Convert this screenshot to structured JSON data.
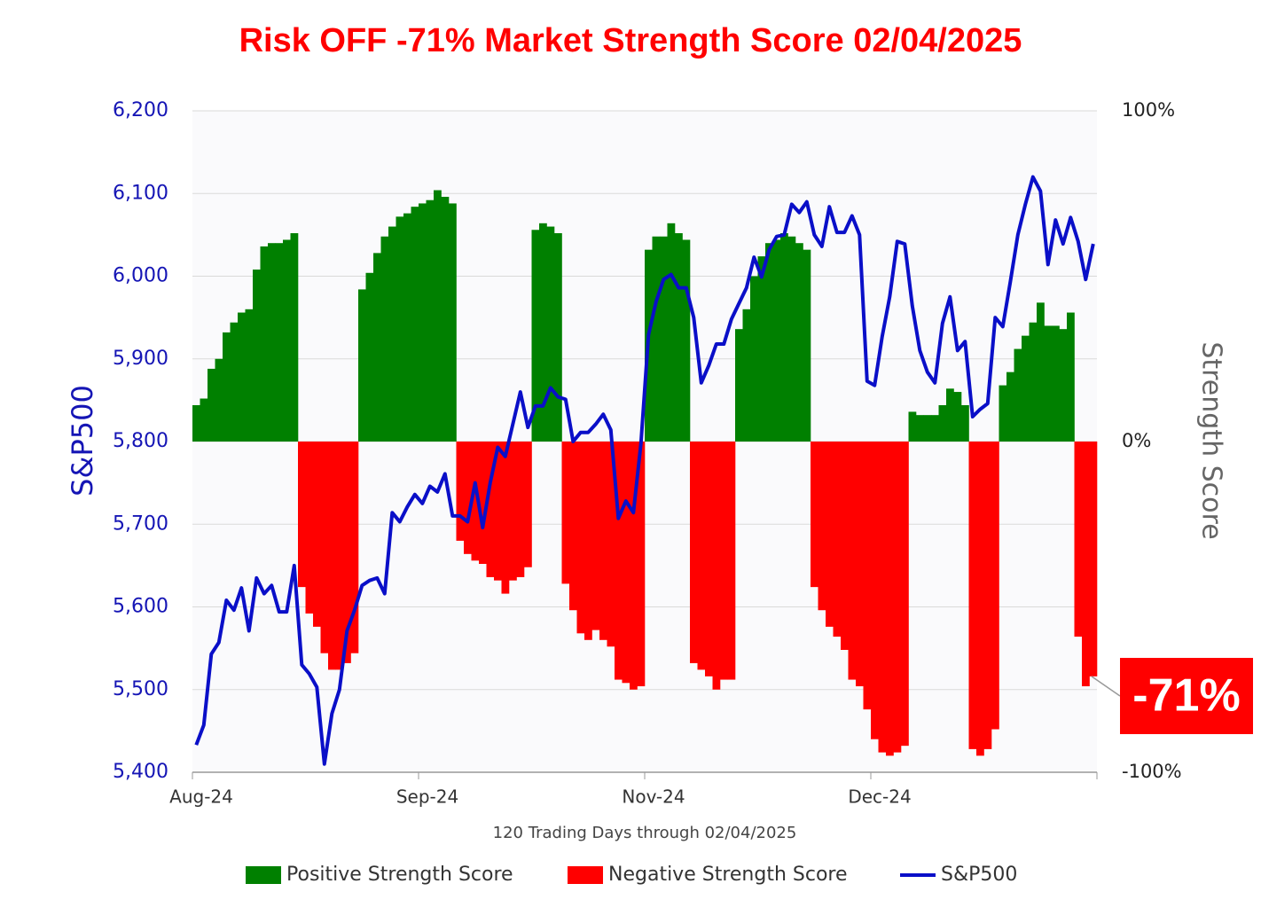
{
  "chart_data": {
    "type": "bar",
    "title": "Risk OFF -71% Market Strength Score 02/04/2025",
    "y_label": "S&P500",
    "y2_label": "Strength Score",
    "x_label": "120 Trading Days through 02/04/2025",
    "annotation": "-71%",
    "categories": [
      "Aug-24",
      null,
      null,
      null,
      null,
      null,
      null,
      null,
      null,
      null,
      null,
      null,
      null,
      null,
      null,
      null,
      null,
      null,
      null,
      null,
      null,
      null,
      null,
      null,
      null,
      null,
      null,
      null,
      null,
      null,
      "Sep-24",
      null,
      null,
      null,
      null,
      null,
      null,
      null,
      null,
      null,
      null,
      null,
      null,
      null,
      null,
      null,
      null,
      null,
      null,
      null,
      null,
      null,
      null,
      null,
      null,
      null,
      null,
      null,
      null,
      null,
      "Nov-24",
      null,
      null,
      null,
      null,
      null,
      null,
      null,
      null,
      null,
      null,
      null,
      null,
      null,
      null,
      null,
      null,
      null,
      null,
      null,
      null,
      null,
      null,
      null,
      null,
      null,
      null,
      null,
      null,
      null,
      "Dec-24",
      null,
      null,
      null,
      null,
      null,
      null,
      null,
      null,
      null,
      null,
      null,
      null,
      null,
      null,
      null,
      null,
      null,
      null,
      null,
      null,
      null,
      null,
      null,
      null,
      null,
      null,
      null,
      null,
      null
    ],
    "series": [
      {
        "name": "Positive Strength Score",
        "color": "#008000",
        "axis": "y2",
        "values": [
          11,
          13,
          22,
          25,
          33,
          36,
          39,
          40,
          52,
          59,
          60,
          60,
          61,
          63,
          null,
          null,
          null,
          null,
          null,
          null,
          null,
          null,
          46,
          51,
          57,
          62,
          65,
          68,
          69,
          71,
          72,
          73,
          76,
          74,
          72,
          null,
          null,
          null,
          null,
          null,
          null,
          null,
          null,
          null,
          null,
          64,
          66,
          65,
          63,
          null,
          null,
          null,
          null,
          null,
          null,
          null,
          null,
          null,
          null,
          null,
          58,
          62,
          62,
          66,
          63,
          61,
          null,
          null,
          null,
          null,
          null,
          null,
          34,
          40,
          50,
          56,
          60,
          61,
          63,
          62,
          60,
          58,
          null,
          null,
          null,
          null,
          null,
          null,
          null,
          null,
          null,
          null,
          null,
          null,
          null,
          9,
          8,
          8,
          8,
          11,
          16,
          15,
          11,
          null,
          null,
          null,
          null,
          17,
          21,
          28,
          32,
          36,
          42,
          35,
          35,
          34,
          39,
          null,
          null,
          null
        ]
      },
      {
        "name": "Negative Strength Score",
        "color": "#ff0000",
        "axis": "y2",
        "values": [
          null,
          null,
          null,
          null,
          null,
          null,
          null,
          null,
          null,
          null,
          null,
          null,
          null,
          null,
          -44,
          -52,
          -56,
          -64,
          -69,
          -69,
          -67,
          -64,
          null,
          null,
          null,
          null,
          null,
          null,
          null,
          null,
          null,
          null,
          null,
          null,
          null,
          -30,
          -34,
          -36,
          -37,
          -41,
          -42,
          -46,
          -42,
          -41,
          -38,
          null,
          null,
          null,
          null,
          -43,
          -51,
          -58,
          -60,
          -57,
          -60,
          -62,
          -72,
          -73,
          -75,
          -74,
          null,
          null,
          null,
          null,
          null,
          null,
          -67,
          -69,
          -71,
          -75,
          -72,
          -72,
          null,
          null,
          null,
          null,
          null,
          null,
          null,
          null,
          null,
          null,
          -44,
          -51,
          -56,
          -59,
          -63,
          -72,
          -74,
          -81,
          -90,
          -94,
          -95,
          -94,
          -92,
          null,
          null,
          null,
          null,
          null,
          null,
          null,
          null,
          -93,
          -95,
          -93,
          -87,
          null,
          null,
          null,
          null,
          null,
          null,
          null,
          null,
          null,
          null,
          -59,
          -74,
          -71
        ]
      },
      {
        "name": "S&P500",
        "color": "#0a0fc8",
        "type": "line",
        "values": [
          5433,
          5457,
          5543,
          5557,
          5608,
          5596,
          5623,
          5571,
          5635,
          5616,
          5626,
          5594,
          5594,
          5650,
          5530,
          5519,
          5503,
          5410,
          5471,
          5500,
          5571,
          5596,
          5626,
          5632,
          5635,
          5616,
          5714,
          5703,
          5721,
          5736,
          5725,
          5746,
          5739,
          5761,
          5710,
          5710,
          5703,
          5750,
          5696,
          5750,
          5793,
          5782,
          5821,
          5860,
          5817,
          5843,
          5843,
          5865,
          5854,
          5851,
          5800,
          5811,
          5811,
          5821,
          5833,
          5814,
          5707,
          5728,
          5714,
          5798,
          5929,
          5969,
          5996,
          6002,
          5986,
          5986,
          5950,
          5871,
          5892,
          5918,
          5918,
          5948,
          5967,
          5986,
          6023,
          5999,
          6032,
          6048,
          6050,
          6087,
          6077,
          6090,
          6050,
          6036,
          6084,
          6053,
          6053,
          6073,
          6050,
          5873,
          5868,
          5927,
          5975,
          6042,
          6039,
          5964,
          5910,
          5884,
          5871,
          5943,
          5975,
          5910,
          5921,
          5830,
          5839,
          5846,
          5950,
          5939,
          5993,
          6050,
          6087,
          6120,
          6103,
          6014,
          6068,
          6039,
          6071,
          6042,
          5996,
          6039
        ]
      }
    ],
    "ylim": [
      5400,
      6200
    ],
    "yticks": [
      {
        "value": 5400,
        "label": "5,400"
      },
      {
        "value": 5500,
        "label": "5,500"
      },
      {
        "value": 5600,
        "label": "5,600"
      },
      {
        "value": 5700,
        "label": "5,700"
      },
      {
        "value": 5800,
        "label": "5,800"
      },
      {
        "value": 5900,
        "label": "5,900"
      },
      {
        "value": 6000,
        "label": "6,000"
      },
      {
        "value": 6100,
        "label": "6,100"
      },
      {
        "value": 6200,
        "label": "6,200"
      }
    ],
    "y2lim": [
      -100,
      100
    ],
    "y2ticks": [
      {
        "value": -100,
        "label": "-100%"
      },
      {
        "value": 0,
        "label": "0%"
      },
      {
        "value": 100,
        "label": "100%"
      }
    ],
    "grid": true,
    "legend": "bottom"
  }
}
